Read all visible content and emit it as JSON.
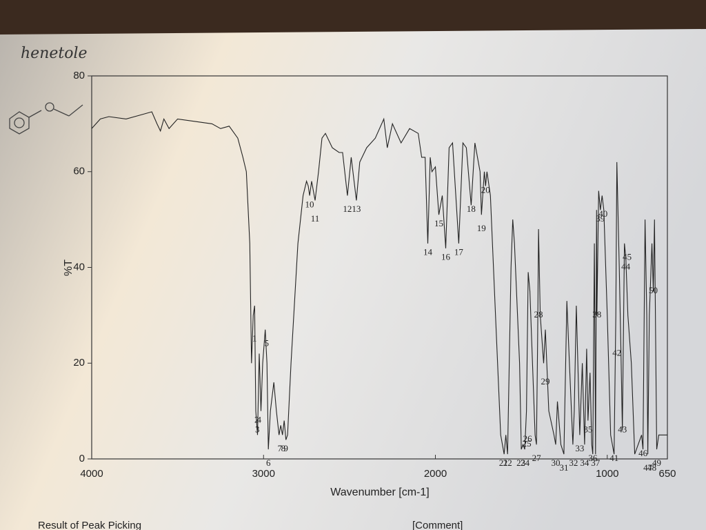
{
  "note": "henetole",
  "chart_data": {
    "type": "line",
    "xlabel": "Wavenumber [cm-1]",
    "ylabel": "%T",
    "xlim": [
      4000,
      650
    ],
    "ylim": [
      0,
      80
    ],
    "xticks": [
      4000,
      3000,
      2000,
      1000,
      650
    ],
    "yticks": [
      0,
      20,
      40,
      60,
      80
    ],
    "color": "#222222",
    "x": [
      4000,
      3950,
      3900,
      3800,
      3700,
      3650,
      3620,
      3600,
      3580,
      3550,
      3500,
      3400,
      3300,
      3250,
      3200,
      3150,
      3120,
      3100,
      3080,
      3070,
      3060,
      3052,
      3045,
      3035,
      3025,
      3015,
      3005,
      2990,
      2980,
      2972,
      2960,
      2940,
      2925,
      2910,
      2900,
      2890,
      2880,
      2870,
      2860,
      2840,
      2800,
      2770,
      2750,
      2740,
      2732,
      2720,
      2700,
      2680,
      2660,
      2640,
      2600,
      2560,
      2540,
      2512,
      2490,
      2460,
      2440,
      2400,
      2350,
      2300,
      2280,
      2250,
      2200,
      2150,
      2100,
      2080,
      2060,
      2044,
      2030,
      2020,
      2000,
      1980,
      1960,
      1940,
      1920,
      1900,
      1864,
      1840,
      1820,
      1792,
      1770,
      1740,
      1732,
      1715,
      1708,
      1700,
      1680,
      1650,
      1620,
      1600,
      1590,
      1580,
      1560,
      1550,
      1540,
      1510,
      1500,
      1490,
      1480,
      1470,
      1460,
      1450,
      1420,
      1412,
      1405,
      1400,
      1390,
      1370,
      1360,
      1340,
      1310,
      1300,
      1290,
      1270,
      1252,
      1235,
      1220,
      1200,
      1192,
      1180,
      1160,
      1145,
      1132,
      1120,
      1112,
      1100,
      1090,
      1084,
      1075,
      1068,
      1062,
      1060,
      1050,
      1040,
      1030,
      1020,
      1000,
      980,
      960,
      950,
      944,
      930,
      920,
      912,
      900,
      892,
      880,
      860,
      840,
      800,
      792,
      780,
      770,
      764,
      755,
      740,
      732,
      725,
      712,
      700,
      650
    ],
    "y": [
      69,
      71,
      71.5,
      71,
      72,
      72.5,
      70,
      68.5,
      71,
      69,
      71,
      70.5,
      70,
      69,
      69.5,
      67,
      63,
      60,
      45,
      20,
      30,
      32,
      10,
      5,
      22,
      10,
      20,
      27,
      20,
      2,
      10,
      16,
      10,
      5,
      7,
      5,
      8,
      4,
      5,
      20,
      45,
      55,
      58,
      57,
      55,
      58,
      54,
      60,
      67,
      68,
      65,
      64,
      64,
      55,
      63,
      54,
      62,
      65,
      67,
      71,
      65,
      70,
      66,
      69,
      68,
      63,
      63,
      45,
      63,
      60,
      61,
      51,
      55,
      44,
      65,
      66,
      45,
      66,
      65,
      53,
      66,
      60,
      51,
      60,
      57,
      60,
      55,
      30,
      5,
      1,
      5,
      1,
      40,
      50,
      45,
      20,
      2,
      3,
      2,
      10,
      39,
      35,
      5,
      3,
      25,
      48,
      30,
      20,
      27,
      10,
      5,
      3,
      12,
      3,
      1,
      33,
      20,
      3,
      10,
      32,
      5,
      20,
      3,
      23,
      8,
      18,
      3,
      1,
      45,
      1,
      52,
      30,
      56,
      52,
      55,
      52,
      30,
      5,
      1,
      30,
      62,
      40,
      22,
      6,
      45,
      42,
      30,
      20,
      1,
      5,
      2,
      50,
      30,
      1,
      30,
      45,
      35,
      50,
      2,
      5,
      5
    ],
    "peaks": [
      {
        "label": "1",
        "x": 3052,
        "y": 25
      },
      {
        "label": "2",
        "x": 3040,
        "y": 8
      },
      {
        "label": "3",
        "x": 3036,
        "y": 6
      },
      {
        "label": "4",
        "x": 3026,
        "y": 8
      },
      {
        "label": "5",
        "x": 2982,
        "y": 24
      },
      {
        "label": "6",
        "x": 2972,
        "y": -1
      },
      {
        "label": "7",
        "x": 2905,
        "y": 2
      },
      {
        "label": "8",
        "x": 2885,
        "y": 2
      },
      {
        "label": "9",
        "x": 2870,
        "y": 2
      },
      {
        "label": "10",
        "x": 2732,
        "y": 53
      },
      {
        "label": "11",
        "x": 2700,
        "y": 50
      },
      {
        "label": "12",
        "x": 2512,
        "y": 52
      },
      {
        "label": "13",
        "x": 2460,
        "y": 52
      },
      {
        "label": "14",
        "x": 2044,
        "y": 43
      },
      {
        "label": "15",
        "x": 1980,
        "y": 49
      },
      {
        "label": "16",
        "x": 1940,
        "y": 42
      },
      {
        "label": "17",
        "x": 1864,
        "y": 43
      },
      {
        "label": "18",
        "x": 1792,
        "y": 52
      },
      {
        "label": "19",
        "x": 1732,
        "y": 48
      },
      {
        "label": "20",
        "x": 1708,
        "y": 56
      },
      {
        "label": "21",
        "x": 1604,
        "y": -1
      },
      {
        "label": "22",
        "x": 1580,
        "y": -1
      },
      {
        "label": "23",
        "x": 1502,
        "y": -1
      },
      {
        "label": "24",
        "x": 1478,
        "y": -1
      },
      {
        "label": "25",
        "x": 1468,
        "y": 3
      },
      {
        "label": "26",
        "x": 1464,
        "y": 4
      },
      {
        "label": "27",
        "x": 1412,
        "y": 0
      },
      {
        "label": "28",
        "x": 1400,
        "y": 30
      },
      {
        "label": "29",
        "x": 1360,
        "y": 16
      },
      {
        "label": "30",
        "x": 1300,
        "y": -1
      },
      {
        "label": "31",
        "x": 1252,
        "y": -2
      },
      {
        "label": "32",
        "x": 1196,
        "y": -1
      },
      {
        "label": "33",
        "x": 1160,
        "y": 2
      },
      {
        "label": "34",
        "x": 1132,
        "y": -1
      },
      {
        "label": "35",
        "x": 1112,
        "y": 6
      },
      {
        "label": "36",
        "x": 1084,
        "y": 0
      },
      {
        "label": "37",
        "x": 1068,
        "y": -1
      },
      {
        "label": "38",
        "x": 1060,
        "y": 30
      },
      {
        "label": "39",
        "x": 1040,
        "y": 50
      },
      {
        "label": "40",
        "x": 1024,
        "y": 51
      },
      {
        "label": "41",
        "x": 960,
        "y": 0
      },
      {
        "label": "42",
        "x": 944,
        "y": 22
      },
      {
        "label": "43",
        "x": 912,
        "y": 6
      },
      {
        "label": "44",
        "x": 892,
        "y": 40
      },
      {
        "label": "45",
        "x": 884,
        "y": 42
      },
      {
        "label": "46",
        "x": 792,
        "y": 1
      },
      {
        "label": "47",
        "x": 764,
        "y": -2
      },
      {
        "label": "48",
        "x": 740,
        "y": -2
      },
      {
        "label": "49",
        "x": 712,
        "y": -1
      },
      {
        "label": "50",
        "x": 732,
        "y": 35
      }
    ]
  },
  "footer": {
    "left": "Result of Peak Picking",
    "right": "[Comment]"
  }
}
